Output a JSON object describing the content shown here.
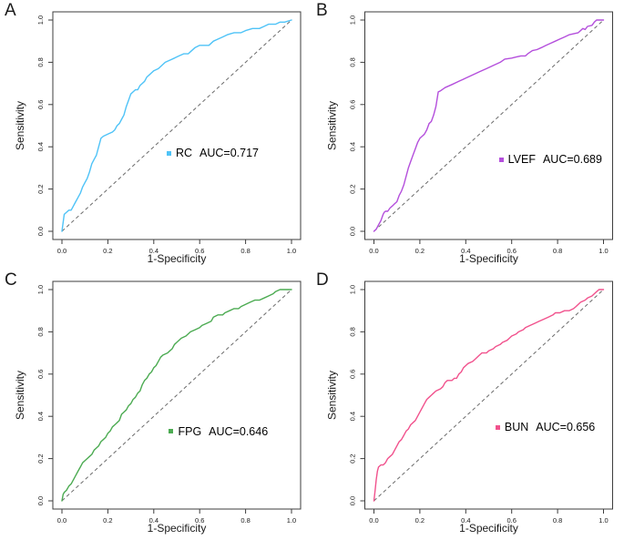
{
  "theme": {
    "background": "#ffffff",
    "axis_color": "#3d3d3d",
    "tick_label_color": "#1a1a1a",
    "reference_line_color": "#6b6b6b"
  },
  "chart_data": [
    {
      "type": "line",
      "panel": "A",
      "series_name": "RC",
      "auc_label": "AUC=0.717",
      "auc": 0.717,
      "color": "#4FC3F7",
      "xlabel": "1-Specificity",
      "ylabel": "Sensitivity",
      "x_ticks": [
        "0.0",
        "0.2",
        "0.4",
        "0.6",
        "0.8",
        "1.0"
      ],
      "y_ticks": [
        "0.0",
        "0.2",
        "0.4",
        "0.6",
        "0.8",
        "1.0"
      ],
      "xlim": [
        0,
        1
      ],
      "ylim": [
        0,
        1
      ],
      "grid": false,
      "diagonal_reference": true,
      "legend_pos": [
        0.48,
        0.36
      ],
      "curve": [
        [
          0,
          0
        ],
        [
          0.01,
          0.08
        ],
        [
          0.02,
          0.09
        ],
        [
          0.03,
          0.1
        ],
        [
          0.04,
          0.1
        ],
        [
          0.05,
          0.12
        ],
        [
          0.06,
          0.14
        ],
        [
          0.07,
          0.16
        ],
        [
          0.08,
          0.18
        ],
        [
          0.09,
          0.21
        ],
        [
          0.1,
          0.23
        ],
        [
          0.11,
          0.25
        ],
        [
          0.12,
          0.28
        ],
        [
          0.13,
          0.32
        ],
        [
          0.14,
          0.34
        ],
        [
          0.15,
          0.36
        ],
        [
          0.16,
          0.4
        ],
        [
          0.17,
          0.44
        ],
        [
          0.18,
          0.45
        ],
        [
          0.2,
          0.46
        ],
        [
          0.22,
          0.47
        ],
        [
          0.23,
          0.48
        ],
        [
          0.24,
          0.5
        ],
        [
          0.25,
          0.51
        ],
        [
          0.26,
          0.53
        ],
        [
          0.27,
          0.55
        ],
        [
          0.28,
          0.59
        ],
        [
          0.29,
          0.62
        ],
        [
          0.3,
          0.65
        ],
        [
          0.31,
          0.66
        ],
        [
          0.32,
          0.67
        ],
        [
          0.33,
          0.67
        ],
        [
          0.34,
          0.69
        ],
        [
          0.35,
          0.7
        ],
        [
          0.36,
          0.71
        ],
        [
          0.37,
          0.73
        ],
        [
          0.38,
          0.74
        ],
        [
          0.39,
          0.75
        ],
        [
          0.4,
          0.76
        ],
        [
          0.42,
          0.77
        ],
        [
          0.43,
          0.78
        ],
        [
          0.45,
          0.8
        ],
        [
          0.47,
          0.81
        ],
        [
          0.49,
          0.82
        ],
        [
          0.51,
          0.83
        ],
        [
          0.53,
          0.84
        ],
        [
          0.55,
          0.84
        ],
        [
          0.56,
          0.85
        ],
        [
          0.58,
          0.87
        ],
        [
          0.6,
          0.88
        ],
        [
          0.62,
          0.88
        ],
        [
          0.64,
          0.88
        ],
        [
          0.66,
          0.9
        ],
        [
          0.68,
          0.91
        ],
        [
          0.7,
          0.92
        ],
        [
          0.72,
          0.93
        ],
        [
          0.75,
          0.94
        ],
        [
          0.78,
          0.94
        ],
        [
          0.8,
          0.95
        ],
        [
          0.83,
          0.96
        ],
        [
          0.86,
          0.96
        ],
        [
          0.88,
          0.97
        ],
        [
          0.9,
          0.98
        ],
        [
          0.93,
          0.98
        ],
        [
          0.95,
          0.99
        ],
        [
          0.97,
          0.99
        ],
        [
          1,
          1
        ]
      ]
    },
    {
      "type": "line",
      "panel": "B",
      "series_name": "LVEF",
      "auc_label": "AUC=0.689",
      "auc": 0.689,
      "color": "#B44FDC",
      "xlabel": "1-Specificity",
      "ylabel": "Sensitivity",
      "x_ticks": [
        "0.0",
        "0.2",
        "0.4",
        "0.6",
        "0.8",
        "1.0"
      ],
      "y_ticks": [
        "0.0",
        "0.2",
        "0.4",
        "0.6",
        "0.8",
        "1.0"
      ],
      "xlim": [
        0,
        1
      ],
      "ylim": [
        0,
        1
      ],
      "grid": false,
      "diagonal_reference": true,
      "legend_pos": [
        0.57,
        0.33
      ],
      "curve": [
        [
          0,
          0
        ],
        [
          0.01,
          0.01
        ],
        [
          0.02,
          0.03
        ],
        [
          0.03,
          0.05
        ],
        [
          0.04,
          0.08
        ],
        [
          0.045,
          0.09
        ],
        [
          0.05,
          0.095
        ],
        [
          0.06,
          0.095
        ],
        [
          0.07,
          0.11
        ],
        [
          0.08,
          0.12
        ],
        [
          0.09,
          0.13
        ],
        [
          0.1,
          0.14
        ],
        [
          0.11,
          0.17
        ],
        [
          0.12,
          0.19
        ],
        [
          0.13,
          0.22
        ],
        [
          0.14,
          0.26
        ],
        [
          0.15,
          0.3
        ],
        [
          0.16,
          0.33
        ],
        [
          0.17,
          0.36
        ],
        [
          0.18,
          0.39
        ],
        [
          0.19,
          0.42
        ],
        [
          0.2,
          0.44
        ],
        [
          0.21,
          0.45
        ],
        [
          0.22,
          0.46
        ],
        [
          0.23,
          0.48
        ],
        [
          0.24,
          0.51
        ],
        [
          0.25,
          0.52
        ],
        [
          0.26,
          0.55
        ],
        [
          0.27,
          0.59
        ],
        [
          0.28,
          0.66
        ],
        [
          0.29,
          0.665
        ],
        [
          0.31,
          0.68
        ],
        [
          0.34,
          0.695
        ],
        [
          0.37,
          0.71
        ],
        [
          0.4,
          0.725
        ],
        [
          0.43,
          0.74
        ],
        [
          0.46,
          0.755
        ],
        [
          0.49,
          0.77
        ],
        [
          0.52,
          0.785
        ],
        [
          0.55,
          0.8
        ],
        [
          0.57,
          0.815
        ],
        [
          0.6,
          0.82
        ],
        [
          0.62,
          0.825
        ],
        [
          0.64,
          0.83
        ],
        [
          0.66,
          0.83
        ],
        [
          0.67,
          0.84
        ],
        [
          0.69,
          0.855
        ],
        [
          0.71,
          0.86
        ],
        [
          0.73,
          0.87
        ],
        [
          0.75,
          0.88
        ],
        [
          0.77,
          0.89
        ],
        [
          0.79,
          0.9
        ],
        [
          0.81,
          0.91
        ],
        [
          0.83,
          0.92
        ],
        [
          0.85,
          0.93
        ],
        [
          0.87,
          0.935
        ],
        [
          0.89,
          0.94
        ],
        [
          0.9,
          0.95
        ],
        [
          0.91,
          0.96
        ],
        [
          0.92,
          0.955
        ],
        [
          0.93,
          0.97
        ],
        [
          0.95,
          0.975
        ],
        [
          0.96,
          0.99
        ],
        [
          0.97,
          1.0
        ],
        [
          1,
          1
        ]
      ]
    },
    {
      "type": "line",
      "panel": "C",
      "series_name": "FPG",
      "auc_label": "AUC=0.646",
      "auc": 0.646,
      "color": "#4CAB52",
      "xlabel": "1-Specificity",
      "ylabel": "Sensitivity",
      "x_ticks": [
        "0.0",
        "0.2",
        "0.4",
        "0.6",
        "0.8",
        "1.0"
      ],
      "y_ticks": [
        "0.0",
        "0.2",
        "0.4",
        "0.6",
        "0.8",
        "1.0"
      ],
      "xlim": [
        0,
        1
      ],
      "ylim": [
        0,
        1
      ],
      "grid": false,
      "diagonal_reference": true,
      "legend_pos": [
        0.49,
        0.32
      ],
      "curve": [
        [
          0,
          0
        ],
        [
          0.005,
          0.03
        ],
        [
          0.01,
          0.04
        ],
        [
          0.02,
          0.05
        ],
        [
          0.03,
          0.07
        ],
        [
          0.04,
          0.08
        ],
        [
          0.05,
          0.1
        ],
        [
          0.06,
          0.12
        ],
        [
          0.07,
          0.14
        ],
        [
          0.08,
          0.16
        ],
        [
          0.09,
          0.18
        ],
        [
          0.1,
          0.19
        ],
        [
          0.11,
          0.2
        ],
        [
          0.12,
          0.21
        ],
        [
          0.13,
          0.22
        ],
        [
          0.14,
          0.24
        ],
        [
          0.15,
          0.25
        ],
        [
          0.16,
          0.26
        ],
        [
          0.17,
          0.28
        ],
        [
          0.18,
          0.29
        ],
        [
          0.19,
          0.3
        ],
        [
          0.2,
          0.32
        ],
        [
          0.21,
          0.33
        ],
        [
          0.22,
          0.35
        ],
        [
          0.23,
          0.36
        ],
        [
          0.24,
          0.37
        ],
        [
          0.25,
          0.38
        ],
        [
          0.26,
          0.41
        ],
        [
          0.27,
          0.42
        ],
        [
          0.28,
          0.43
        ],
        [
          0.29,
          0.45
        ],
        [
          0.3,
          0.46
        ],
        [
          0.31,
          0.48
        ],
        [
          0.32,
          0.49
        ],
        [
          0.33,
          0.51
        ],
        [
          0.34,
          0.52
        ],
        [
          0.35,
          0.55
        ],
        [
          0.36,
          0.57
        ],
        [
          0.37,
          0.58
        ],
        [
          0.38,
          0.6
        ],
        [
          0.39,
          0.61
        ],
        [
          0.4,
          0.63
        ],
        [
          0.41,
          0.64
        ],
        [
          0.42,
          0.66
        ],
        [
          0.43,
          0.68
        ],
        [
          0.44,
          0.69
        ],
        [
          0.46,
          0.7
        ],
        [
          0.47,
          0.71
        ],
        [
          0.48,
          0.72
        ],
        [
          0.49,
          0.74
        ],
        [
          0.5,
          0.75
        ],
        [
          0.52,
          0.77
        ],
        [
          0.54,
          0.78
        ],
        [
          0.56,
          0.8
        ],
        [
          0.58,
          0.81
        ],
        [
          0.6,
          0.82
        ],
        [
          0.61,
          0.83
        ],
        [
          0.63,
          0.84
        ],
        [
          0.65,
          0.85
        ],
        [
          0.66,
          0.87
        ],
        [
          0.68,
          0.88
        ],
        [
          0.7,
          0.88
        ],
        [
          0.71,
          0.89
        ],
        [
          0.73,
          0.9
        ],
        [
          0.75,
          0.91
        ],
        [
          0.77,
          0.91
        ],
        [
          0.78,
          0.92
        ],
        [
          0.8,
          0.93
        ],
        [
          0.82,
          0.94
        ],
        [
          0.84,
          0.95
        ],
        [
          0.86,
          0.95
        ],
        [
          0.88,
          0.96
        ],
        [
          0.9,
          0.97
        ],
        [
          0.92,
          0.98
        ],
        [
          0.93,
          0.99
        ],
        [
          0.95,
          1.0
        ],
        [
          1,
          1
        ]
      ]
    },
    {
      "type": "line",
      "panel": "D",
      "series_name": "BUN",
      "auc_label": "AUC=0.656",
      "auc": 0.656,
      "color": "#F1528D",
      "xlabel": "1-Specificity",
      "ylabel": "Sensitivity",
      "x_ticks": [
        "0.0",
        "0.2",
        "0.4",
        "0.6",
        "0.8",
        "1.0"
      ],
      "y_ticks": [
        "0.0",
        "0.2",
        "0.4",
        "0.6",
        "0.8",
        "1.0"
      ],
      "xlim": [
        0,
        1
      ],
      "ylim": [
        0,
        1
      ],
      "grid": false,
      "diagonal_reference": true,
      "legend_pos": [
        0.555,
        0.34
      ],
      "curve": [
        [
          0,
          0
        ],
        [
          0.005,
          0.05
        ],
        [
          0.01,
          0.1
        ],
        [
          0.015,
          0.14
        ],
        [
          0.02,
          0.16
        ],
        [
          0.03,
          0.17
        ],
        [
          0.04,
          0.17
        ],
        [
          0.05,
          0.18
        ],
        [
          0.06,
          0.2
        ],
        [
          0.07,
          0.21
        ],
        [
          0.08,
          0.22
        ],
        [
          0.09,
          0.24
        ],
        [
          0.1,
          0.26
        ],
        [
          0.11,
          0.28
        ],
        [
          0.12,
          0.29
        ],
        [
          0.13,
          0.31
        ],
        [
          0.14,
          0.33
        ],
        [
          0.15,
          0.34
        ],
        [
          0.16,
          0.36
        ],
        [
          0.17,
          0.37
        ],
        [
          0.18,
          0.38
        ],
        [
          0.19,
          0.4
        ],
        [
          0.2,
          0.42
        ],
        [
          0.21,
          0.44
        ],
        [
          0.22,
          0.46
        ],
        [
          0.23,
          0.48
        ],
        [
          0.24,
          0.49
        ],
        [
          0.25,
          0.5
        ],
        [
          0.26,
          0.51
        ],
        [
          0.27,
          0.52
        ],
        [
          0.29,
          0.53
        ],
        [
          0.3,
          0.54
        ],
        [
          0.31,
          0.56
        ],
        [
          0.32,
          0.57
        ],
        [
          0.34,
          0.57
        ],
        [
          0.35,
          0.58
        ],
        [
          0.36,
          0.58
        ],
        [
          0.37,
          0.6
        ],
        [
          0.38,
          0.61
        ],
        [
          0.39,
          0.63
        ],
        [
          0.4,
          0.64
        ],
        [
          0.41,
          0.65
        ],
        [
          0.43,
          0.66
        ],
        [
          0.44,
          0.67
        ],
        [
          0.45,
          0.68
        ],
        [
          0.46,
          0.69
        ],
        [
          0.47,
          0.7
        ],
        [
          0.49,
          0.7
        ],
        [
          0.5,
          0.71
        ],
        [
          0.52,
          0.72
        ],
        [
          0.53,
          0.73
        ],
        [
          0.55,
          0.74
        ],
        [
          0.56,
          0.75
        ],
        [
          0.58,
          0.76
        ],
        [
          0.59,
          0.77
        ],
        [
          0.6,
          0.78
        ],
        [
          0.62,
          0.79
        ],
        [
          0.63,
          0.8
        ],
        [
          0.65,
          0.81
        ],
        [
          0.66,
          0.82
        ],
        [
          0.68,
          0.83
        ],
        [
          0.7,
          0.84
        ],
        [
          0.72,
          0.85
        ],
        [
          0.74,
          0.86
        ],
        [
          0.76,
          0.87
        ],
        [
          0.78,
          0.88
        ],
        [
          0.79,
          0.89
        ],
        [
          0.81,
          0.89
        ],
        [
          0.83,
          0.9
        ],
        [
          0.85,
          0.9
        ],
        [
          0.87,
          0.91
        ],
        [
          0.88,
          0.92
        ],
        [
          0.9,
          0.94
        ],
        [
          0.92,
          0.95
        ],
        [
          0.93,
          0.96
        ],
        [
          0.95,
          0.97
        ],
        [
          0.96,
          0.98
        ],
        [
          0.97,
          0.99
        ],
        [
          0.98,
          1.0
        ],
        [
          1,
          1
        ]
      ]
    }
  ]
}
